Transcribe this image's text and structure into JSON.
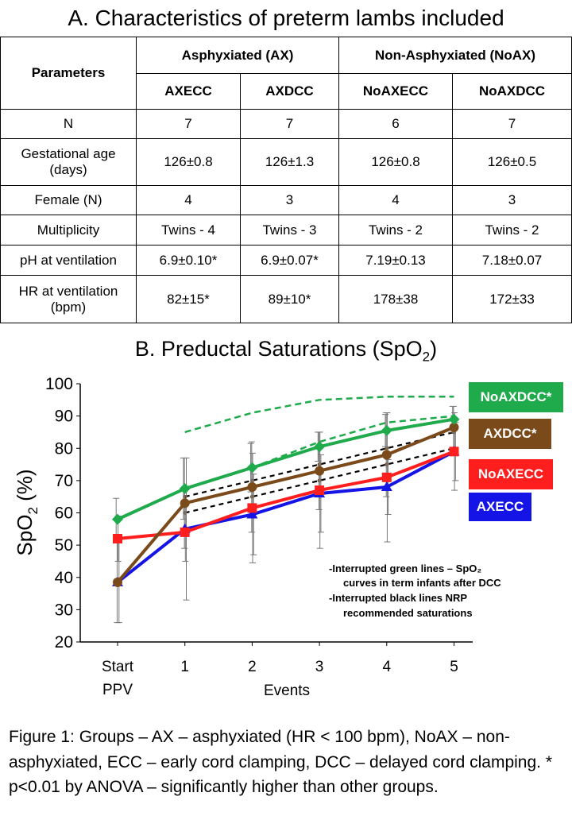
{
  "table": {
    "title": "A. Characteristics of preterm lambs included",
    "param_header": "Parameters",
    "group_headers": [
      "Asphyxiated (AX)",
      "Non-Asphyxiated (NoAX)"
    ],
    "columns": [
      "AXECC",
      "AXDCC",
      "NoAXECC",
      "NoAXDCC"
    ],
    "rows": [
      {
        "label": [
          "N"
        ],
        "values": [
          "7",
          "7",
          "6",
          "7"
        ]
      },
      {
        "label": [
          "Gestational age",
          "(days)"
        ],
        "values": [
          "126±0.8",
          "126±1.3",
          "126±0.8",
          "126±0.5"
        ]
      },
      {
        "label": [
          "Female (N)"
        ],
        "values": [
          "4",
          "3",
          "4",
          "3"
        ]
      },
      {
        "label": [
          "Multiplicity"
        ],
        "values": [
          "Twins - 4",
          "Twins - 3",
          "Twins - 2",
          "Twins - 2"
        ]
      },
      {
        "label": [
          "pH at ventilation"
        ],
        "values": [
          "6.9±0.10*",
          "6.9±0.07*",
          "7.19±0.13",
          "7.18±0.07"
        ]
      },
      {
        "label": [
          "HR at ventilation",
          "(bpm)"
        ],
        "values": [
          "82±15*",
          "89±10*",
          "178±38",
          "172±33"
        ]
      }
    ]
  },
  "chart_title": {
    "main": "B. Preductal Saturations (SpO",
    "sub": "2",
    "end": ")"
  },
  "chart_data": {
    "type": "line",
    "x": [
      "Start PPV",
      "1",
      "2",
      "3",
      "4",
      "5"
    ],
    "xlabel": "Events",
    "ylabel": {
      "main": "SpO",
      "sub": "2",
      "end": " (%)"
    },
    "ylim": [
      20,
      100
    ],
    "yticks": [
      20,
      30,
      40,
      50,
      60,
      70,
      80,
      90,
      100
    ],
    "series": [
      {
        "name": "NoAXDCC*",
        "color": "#1FAA4C",
        "marker": "diamond",
        "values": [
          58,
          67.5,
          74,
          80.5,
          85.5,
          89
        ],
        "err": [
          6.5,
          9.5,
          7.5,
          4.5,
          5,
          4
        ]
      },
      {
        "name": "AXDCC*",
        "color": "#7B4A1A",
        "marker": "circle",
        "values": [
          38.5,
          63,
          68,
          73,
          78,
          86.5
        ],
        "err": [
          12.5,
          14,
          14,
          12,
          13,
          6.5
        ]
      },
      {
        "name": "NoAXECC",
        "color": "#FF1E1E",
        "marker": "square",
        "values": [
          52,
          54,
          61.5,
          67,
          71,
          79
        ],
        "err": [
          7,
          9,
          17,
          18,
          20,
          12
        ]
      },
      {
        "name": "AXECC",
        "color": "#1414E6",
        "marker": "triangle",
        "values": [
          38.5,
          55,
          59.5,
          66,
          68,
          79
        ],
        "err": [
          12.5,
          22,
          12.5,
          12,
          8.5,
          9
        ]
      }
    ],
    "reference_lines": [
      {
        "style": "green-dashed",
        "values": [
          null,
          85,
          91,
          95,
          96,
          96
        ]
      },
      {
        "style": "green-dashed",
        "values": [
          null,
          null,
          74,
          82,
          88,
          90
        ]
      },
      {
        "style": "black-dashed",
        "values": [
          null,
          65,
          70,
          75,
          80,
          85
        ]
      },
      {
        "style": "black-dashed",
        "values": [
          null,
          60,
          65,
          70,
          75,
          80
        ]
      }
    ],
    "annotations": [
      "-Interrupted green lines – SpO₂",
      "curves in term infants after DCC",
      "-Interrupted black lines NRP",
      "recommended saturations"
    ],
    "grid": false,
    "legend_placement": "right"
  },
  "caption": "Figure 1: Groups – AX – asphyxiated (HR < 100 bpm), NoAX – non-asphyxiated, ECC – early cord clamping, DCC – delayed cord clamping. * p<0.01 by ANOVA – significantly higher than other groups."
}
